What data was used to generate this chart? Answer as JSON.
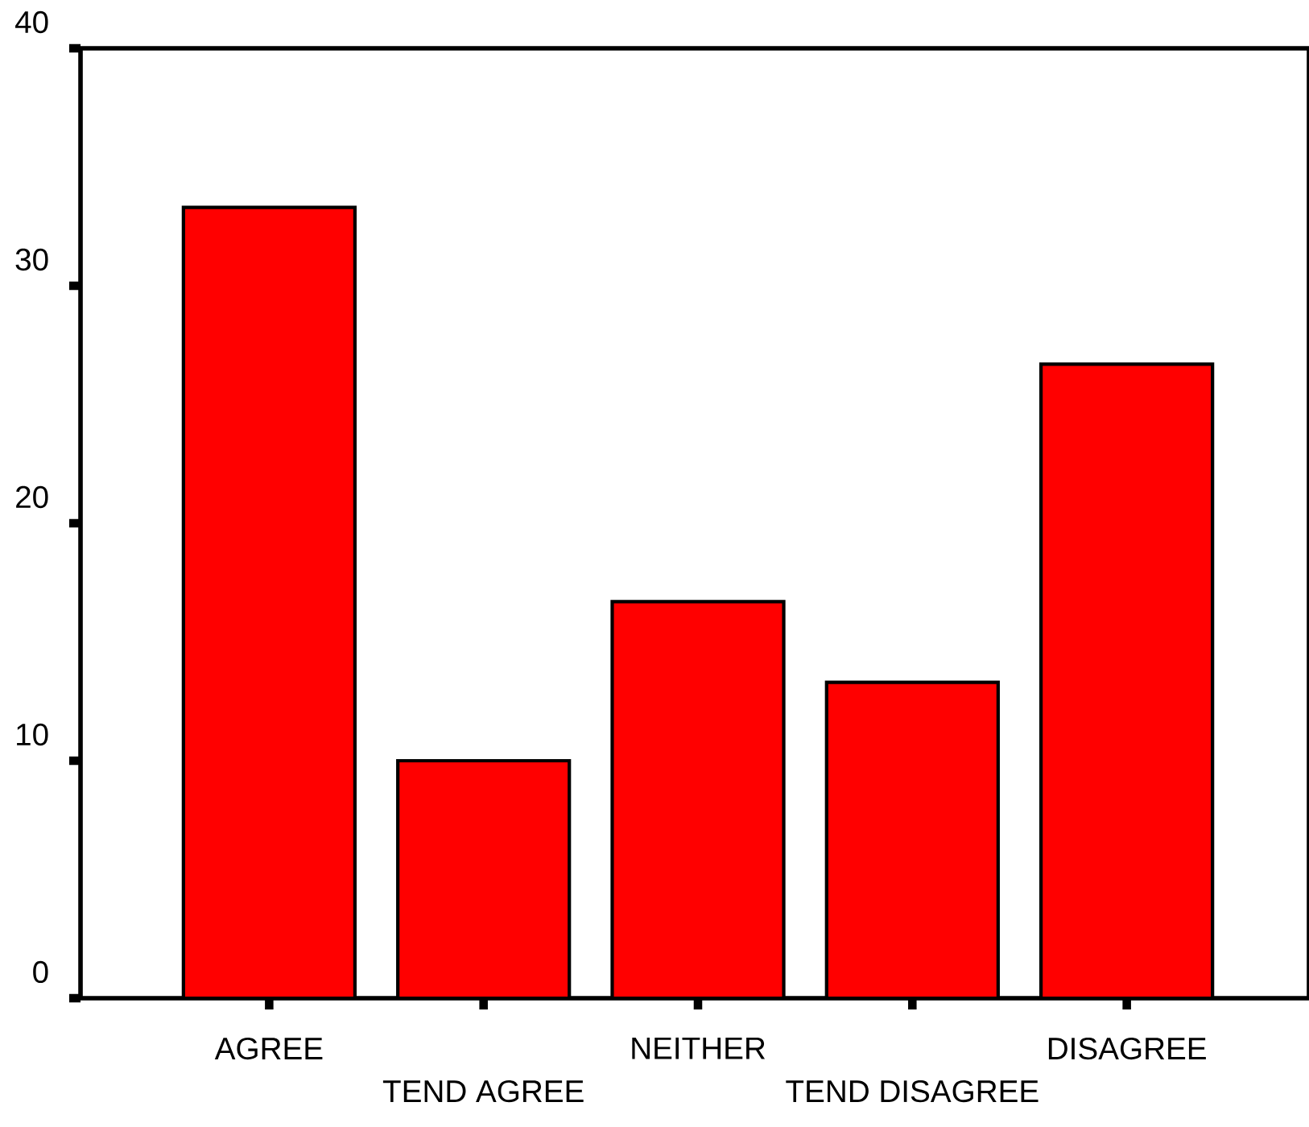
{
  "chart_data": {
    "type": "bar",
    "categories": [
      "AGREE",
      "TEND AGREE",
      "NEITHER",
      "TEND DISAGREE",
      "DISAGREE"
    ],
    "values": [
      33.3,
      10,
      16.7,
      13.3,
      26.7
    ],
    "color": "#ff0000",
    "ylim": [
      0,
      40
    ],
    "yticks": [
      0,
      10,
      20,
      30,
      40
    ],
    "grid": false
  }
}
